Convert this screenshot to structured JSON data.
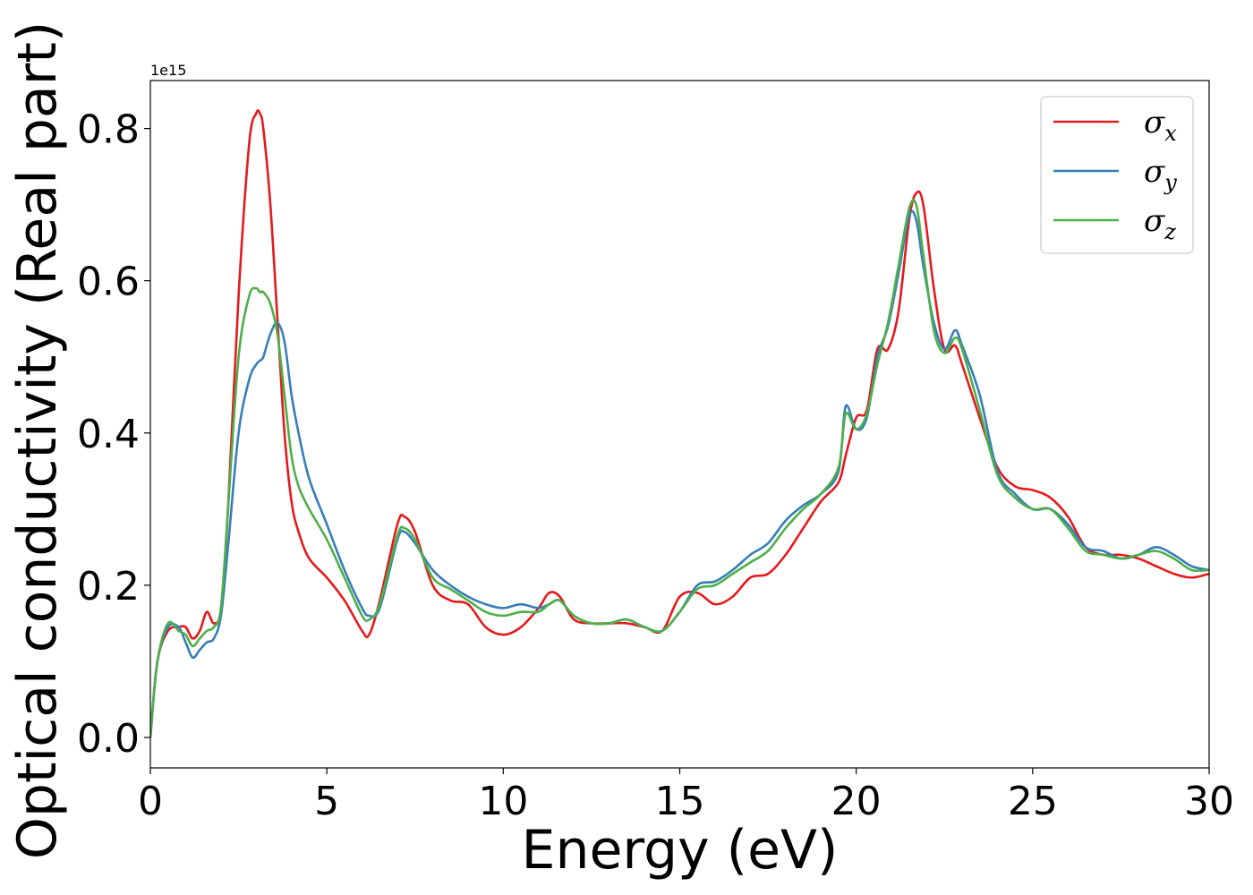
{
  "chart_data": {
    "type": "line",
    "title": "",
    "xlabel": "Energy (eV)",
    "ylabel": "Optical conductivity (Real part)",
    "y_offset_label": "1e15",
    "xlim": [
      0,
      30
    ],
    "ylim": [
      -0.04,
      0.863
    ],
    "xticks": [
      0,
      5,
      10,
      15,
      20,
      25,
      30
    ],
    "xtick_labels": [
      "0",
      "5",
      "10",
      "15",
      "20",
      "25",
      "30"
    ],
    "yticks": [
      0.0,
      0.2,
      0.4,
      0.6,
      0.8
    ],
    "ytick_labels": [
      "0.0",
      "0.2",
      "0.4",
      "0.6",
      "0.8"
    ],
    "grid": false,
    "legend_position": "top-right",
    "x": [
      0.0,
      0.2,
      0.5,
      0.8,
      1.0,
      1.2,
      1.4,
      1.6,
      1.8,
      2.0,
      2.2,
      2.5,
      2.8,
      3.0,
      3.1,
      3.2,
      3.4,
      3.6,
      3.8,
      4.0,
      4.2,
      4.5,
      5.0,
      5.5,
      6.0,
      6.2,
      6.5,
      7.0,
      7.2,
      7.5,
      8.0,
      8.5,
      9.0,
      9.5,
      10.0,
      10.5,
      11.0,
      11.3,
      11.6,
      12.0,
      12.5,
      13.0,
      13.5,
      14.0,
      14.5,
      15.0,
      15.5,
      16.0,
      16.5,
      17.0,
      17.5,
      18.0,
      18.5,
      19.0,
      19.5,
      19.7,
      20.0,
      20.3,
      20.6,
      20.9,
      21.2,
      21.5,
      21.7,
      21.9,
      22.2,
      22.5,
      22.8,
      23.0,
      23.5,
      24.0,
      24.5,
      25.0,
      25.5,
      26.0,
      26.5,
      27.0,
      27.5,
      28.0,
      28.5,
      29.0,
      29.5,
      30.0
    ],
    "series": [
      {
        "name": "σx",
        "label_base": "σ",
        "label_sub": "x",
        "color": "#e41a1c",
        "values": [
          0.0,
          0.1,
          0.14,
          0.145,
          0.145,
          0.13,
          0.14,
          0.165,
          0.15,
          0.17,
          0.3,
          0.58,
          0.78,
          0.82,
          0.82,
          0.8,
          0.7,
          0.55,
          0.4,
          0.31,
          0.27,
          0.235,
          0.21,
          0.18,
          0.14,
          0.135,
          0.18,
          0.28,
          0.29,
          0.27,
          0.2,
          0.18,
          0.175,
          0.145,
          0.135,
          0.145,
          0.17,
          0.19,
          0.185,
          0.155,
          0.15,
          0.15,
          0.15,
          0.145,
          0.14,
          0.185,
          0.19,
          0.175,
          0.185,
          0.21,
          0.215,
          0.24,
          0.275,
          0.31,
          0.335,
          0.37,
          0.42,
          0.43,
          0.51,
          0.51,
          0.56,
          0.68,
          0.715,
          0.7,
          0.59,
          0.51,
          0.515,
          0.49,
          0.42,
          0.355,
          0.33,
          0.325,
          0.315,
          0.29,
          0.25,
          0.24,
          0.24,
          0.235,
          0.225,
          0.215,
          0.21,
          0.215
        ]
      },
      {
        "name": "σy",
        "label_base": "σ",
        "label_sub": "y",
        "color": "#377eb8",
        "values": [
          0.0,
          0.1,
          0.145,
          0.145,
          0.125,
          0.105,
          0.115,
          0.125,
          0.13,
          0.16,
          0.25,
          0.4,
          0.47,
          0.49,
          0.495,
          0.5,
          0.53,
          0.545,
          0.52,
          0.45,
          0.4,
          0.34,
          0.28,
          0.22,
          0.17,
          0.16,
          0.17,
          0.26,
          0.27,
          0.255,
          0.22,
          0.2,
          0.185,
          0.175,
          0.17,
          0.175,
          0.17,
          0.175,
          0.18,
          0.16,
          0.15,
          0.15,
          0.155,
          0.145,
          0.14,
          0.165,
          0.2,
          0.205,
          0.22,
          0.24,
          0.255,
          0.285,
          0.305,
          0.32,
          0.35,
          0.435,
          0.405,
          0.42,
          0.5,
          0.54,
          0.61,
          0.685,
          0.68,
          0.62,
          0.545,
          0.51,
          0.535,
          0.515,
          0.45,
          0.35,
          0.32,
          0.3,
          0.3,
          0.28,
          0.25,
          0.245,
          0.235,
          0.24,
          0.25,
          0.24,
          0.225,
          0.22
        ]
      },
      {
        "name": "σz",
        "label_base": "σ",
        "label_sub": "z",
        "color": "#4daf4a",
        "values": [
          0.0,
          0.1,
          0.15,
          0.14,
          0.135,
          0.12,
          0.13,
          0.14,
          0.145,
          0.17,
          0.3,
          0.5,
          0.58,
          0.59,
          0.585,
          0.585,
          0.57,
          0.53,
          0.45,
          0.37,
          0.33,
          0.3,
          0.26,
          0.21,
          0.16,
          0.155,
          0.175,
          0.265,
          0.275,
          0.26,
          0.21,
          0.195,
          0.18,
          0.165,
          0.16,
          0.165,
          0.165,
          0.175,
          0.18,
          0.16,
          0.15,
          0.15,
          0.155,
          0.145,
          0.14,
          0.165,
          0.195,
          0.2,
          0.215,
          0.23,
          0.245,
          0.275,
          0.3,
          0.32,
          0.355,
          0.425,
          0.405,
          0.425,
          0.49,
          0.545,
          0.62,
          0.695,
          0.7,
          0.635,
          0.535,
          0.505,
          0.525,
          0.51,
          0.43,
          0.345,
          0.315,
          0.3,
          0.3,
          0.275,
          0.245,
          0.24,
          0.235,
          0.24,
          0.245,
          0.235,
          0.22,
          0.22
        ]
      }
    ]
  }
}
